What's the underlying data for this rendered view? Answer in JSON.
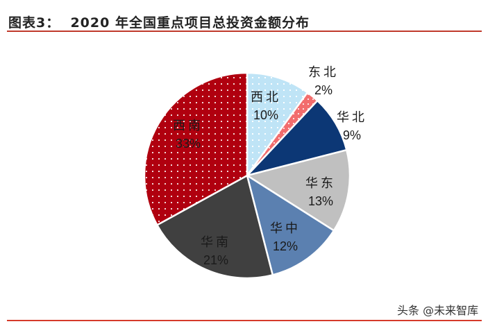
{
  "header": {
    "title": "图表3：  2020 年全国重点项目总投资金额分布"
  },
  "watermark": "头条 @未来智库",
  "chart_data": {
    "type": "pie",
    "title": "2020 年全国重点项目总投资金额分布",
    "start_angle": "12 o'clock, clockwise",
    "categories": [
      "西北",
      "东北",
      "华北",
      "华东",
      "华中",
      "华南",
      "西南"
    ],
    "values": [
      10,
      2,
      9,
      13,
      12,
      21,
      33
    ],
    "labels": [
      "10%",
      "2%",
      "9%",
      "13%",
      "12%",
      "21%",
      "33%"
    ],
    "colors": [
      "#bfe4f6",
      "#f26d6d",
      "#0c3775",
      "#c0c0c0",
      "#5b80b0",
      "#404040",
      "#b0000f"
    ],
    "patterns": [
      "dots",
      "dots",
      "solid",
      "solid",
      "solid",
      "solid",
      "dots"
    ],
    "legend": "none (labels on slices)"
  }
}
